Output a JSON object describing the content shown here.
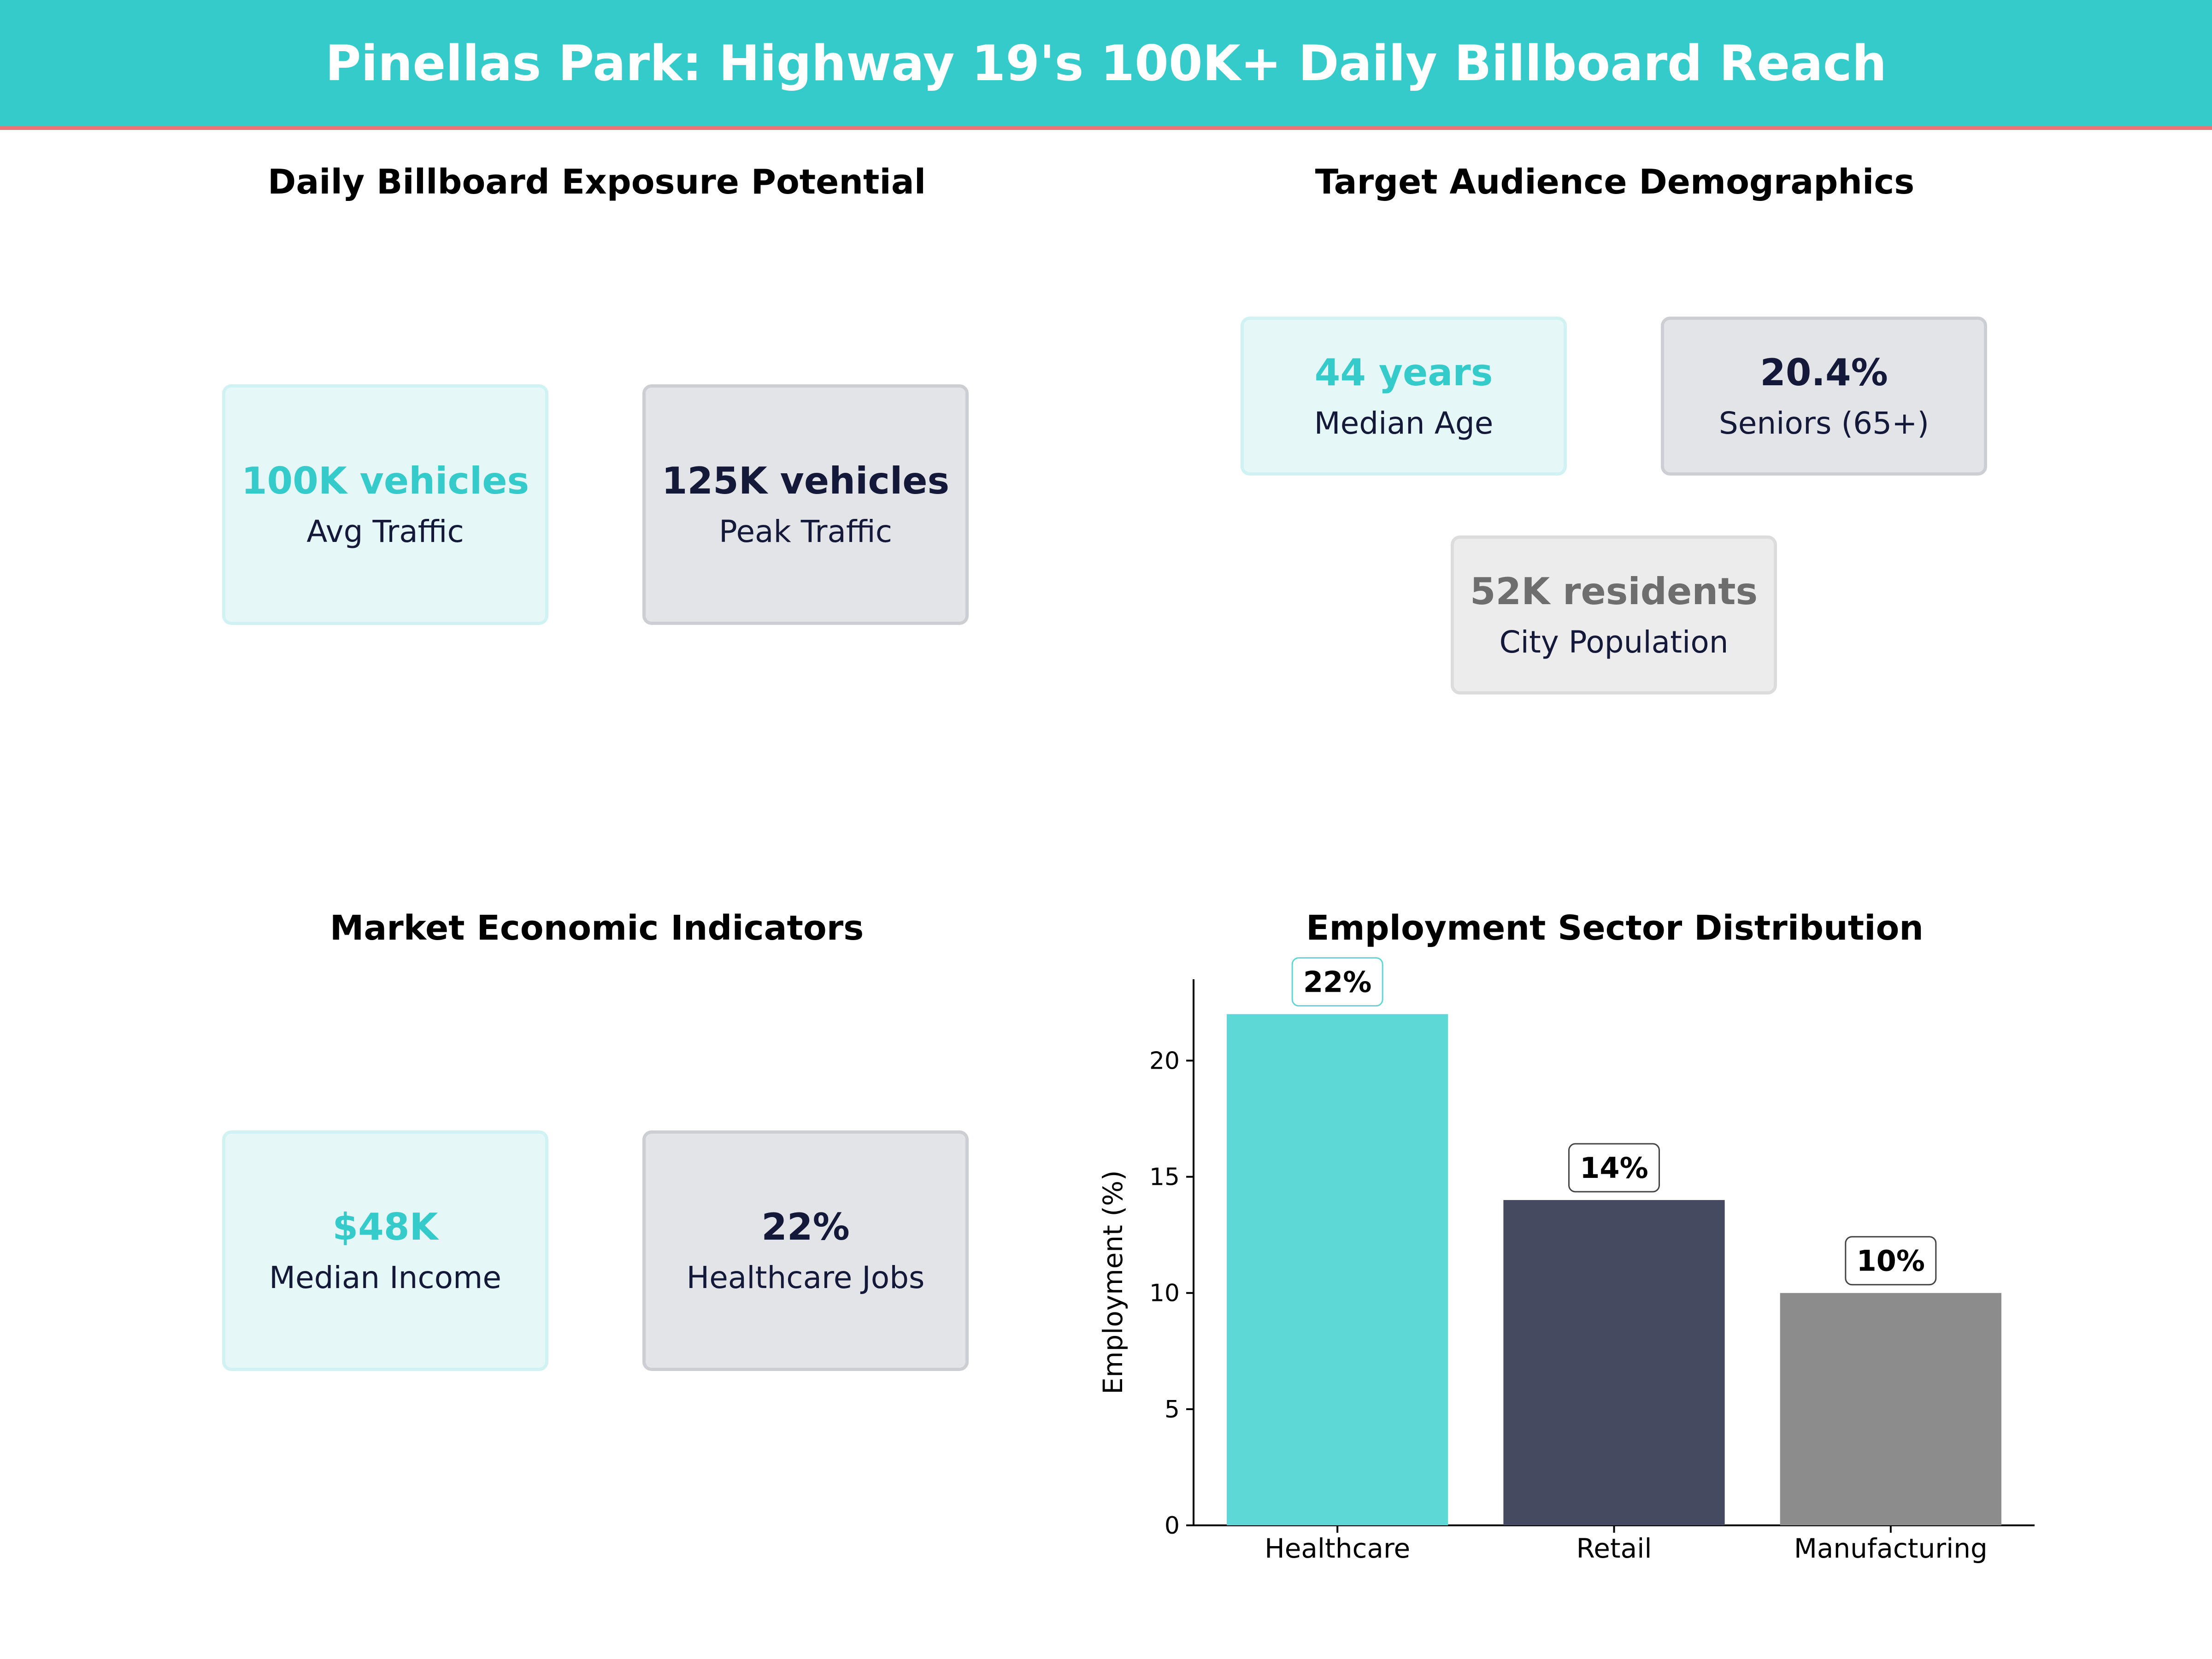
{
  "header": {
    "title": "Pinellas Park: Highway 19's 100K+ Daily Billboard Reach"
  },
  "exposure": {
    "title": "Daily Billboard Exposure Potential",
    "cards": [
      {
        "value": "100K vehicles",
        "label": "Avg  Traffic",
        "accent": "#36cbcb"
      },
      {
        "value": "125K vehicles",
        "label": "Peak  Traffic",
        "accent": "#14193a"
      }
    ]
  },
  "demographics": {
    "title": "Target Audience Demographics",
    "cards": [
      {
        "value": "44 years",
        "label": "Median Age",
        "accent": "#36cbcb"
      },
      {
        "value": "20.4%",
        "label": "Seniors (65+)",
        "accent": "#14193a"
      },
      {
        "value": "52K residents",
        "label": "City Population",
        "accent": "#6e6e6e"
      }
    ]
  },
  "economic": {
    "title": "Market Economic Indicators",
    "cards": [
      {
        "value": "$48K",
        "label": "Median Income",
        "accent": "#36cbcb"
      },
      {
        "value": "22%",
        "label": "Healthcare Jobs",
        "accent": "#14193a"
      }
    ]
  },
  "employment": {
    "title": "Employment Sector Distribution"
  },
  "chart_data": {
    "type": "bar",
    "title": "Employment Sector Distribution",
    "xlabel": "",
    "ylabel": "Employment (%)",
    "categories": [
      "Healthcare",
      "Retail",
      "Manufacturing"
    ],
    "values": [
      22,
      14,
      10
    ],
    "data_labels": [
      "22%",
      "14%",
      "10%"
    ],
    "colors": [
      "#5dd8d6",
      "#464a60",
      "#8c8c8c"
    ],
    "ylim": [
      0,
      23.5
    ],
    "yticks": [
      0,
      5,
      10,
      15,
      20
    ],
    "grid": false,
    "legend": "none"
  }
}
